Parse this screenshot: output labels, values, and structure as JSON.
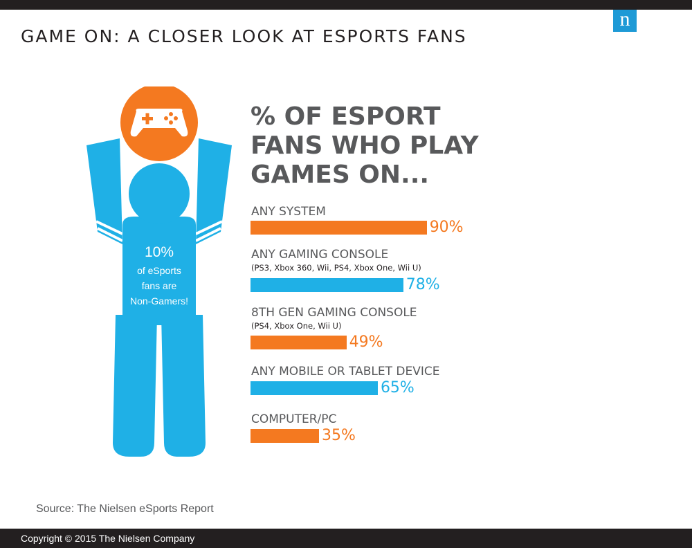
{
  "header": {
    "title": "GAME ON: A CLOSER LOOK AT ESPORTS FANS",
    "logo_letter": "n"
  },
  "figure": {
    "stat_pct": "10%",
    "stat_lines": [
      "of eSports",
      "fans are",
      "Non-Gamers!"
    ]
  },
  "colors": {
    "orange": "#f47920",
    "blue": "#1fb0e6",
    "gray": "#58595b"
  },
  "chart_data": {
    "type": "bar",
    "orientation": "horizontal",
    "title": "% OF ESPORT FANS WHO PLAY GAMES ON...",
    "title_lines": [
      "% OF ESPORT",
      "FANS WHO PLAY",
      "GAMES ON..."
    ],
    "categories": [
      "ANY SYSTEM",
      "ANY GAMING CONSOLE",
      "8TH GEN GAMING CONSOLE",
      "ANY MOBILE OR TABLET DEVICE",
      "COMPUTER/PC"
    ],
    "subtitles": [
      "",
      "(PS3, Xbox 360, Wii, PS4, Xbox One, Wii U)",
      "(PS4, Xbox One, Wii U)",
      "",
      ""
    ],
    "values": [
      90,
      78,
      49,
      65,
      35
    ],
    "value_labels": [
      "90%",
      "78%",
      "49%",
      "65%",
      "35%"
    ],
    "colors": [
      "#f47920",
      "#1fb0e6",
      "#f47920",
      "#1fb0e6",
      "#f47920"
    ],
    "xlim": [
      0,
      100
    ]
  },
  "footer": {
    "source": "Source: The Nielsen eSports Report",
    "copyright": "Copyright © 2015 The Nielsen Company"
  }
}
